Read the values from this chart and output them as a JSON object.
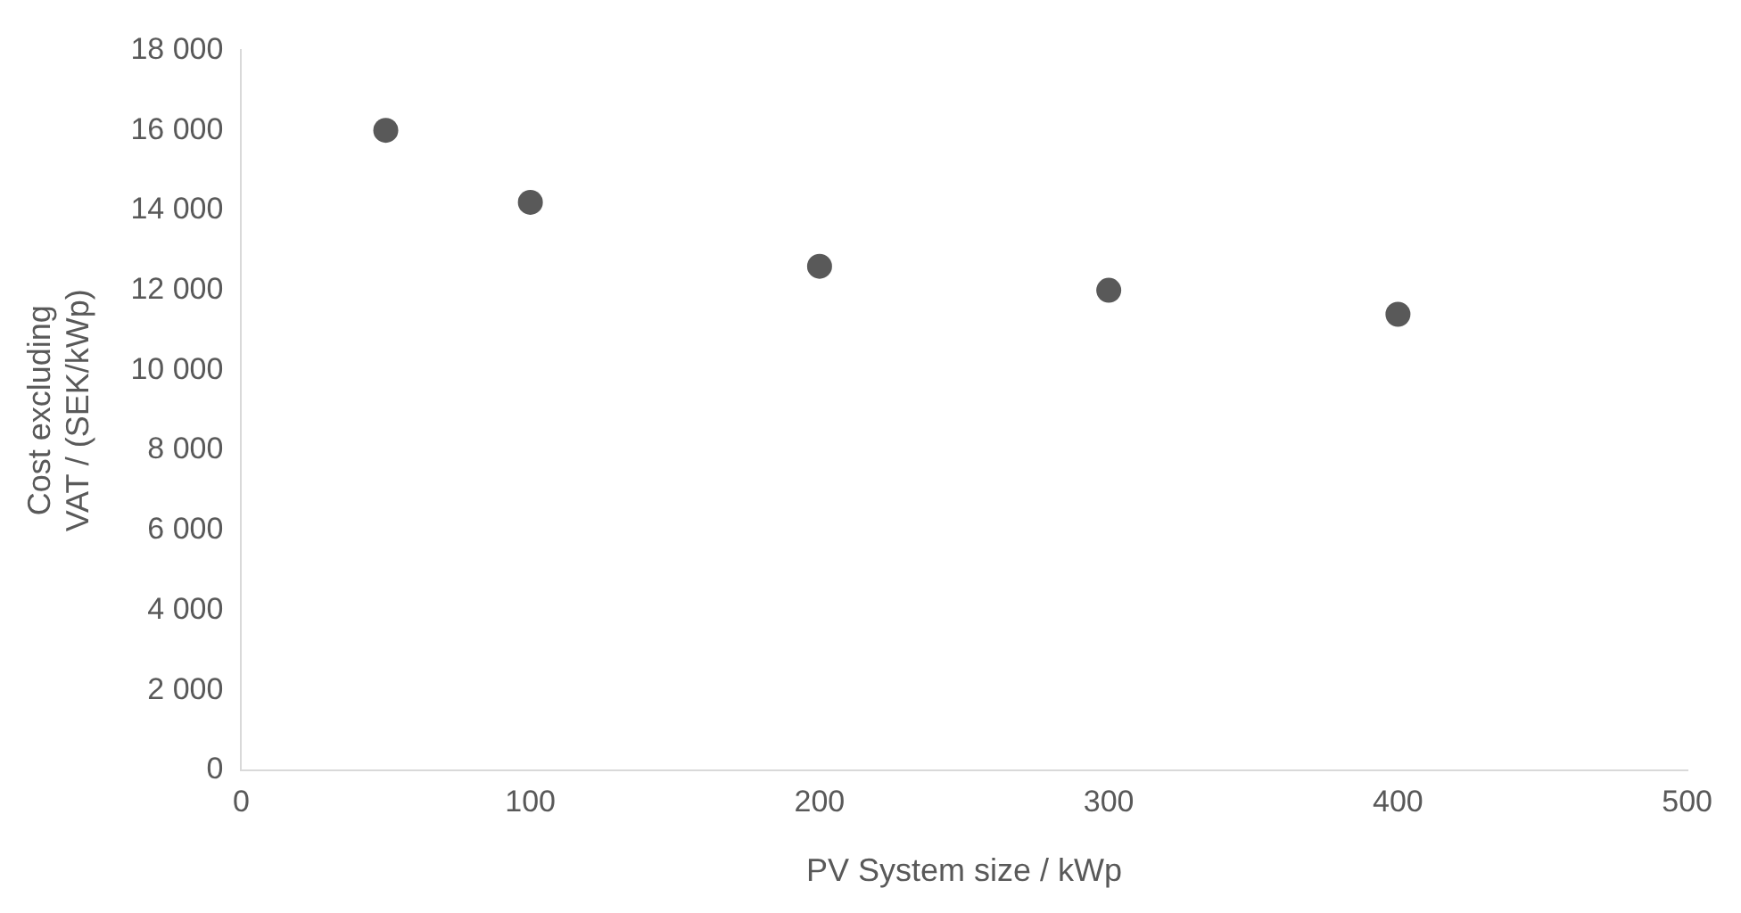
{
  "chart_data": {
    "type": "scatter",
    "xlabel": "PV System size / kWp",
    "ylabel": "Cost excluding VAT / (SEK/kWp)",
    "x": [
      50,
      100,
      200,
      300,
      400
    ],
    "series": [
      {
        "color": "#595959",
        "values": [
          16000,
          14200,
          12600,
          12000,
          11400
        ]
      }
    ],
    "xlim": [
      0,
      500
    ],
    "xticks": [
      0,
      100,
      200,
      300,
      400,
      500
    ],
    "ylim": [
      0,
      18000
    ],
    "yticks": [
      {
        "value": 0,
        "label": "0"
      },
      {
        "value": 2000,
        "label": "2 000"
      },
      {
        "value": 4000,
        "label": "4 000"
      },
      {
        "value": 6000,
        "label": "6 000"
      },
      {
        "value": 8000,
        "label": "8 000"
      },
      {
        "value": 10000,
        "label": "10 000"
      },
      {
        "value": 12000,
        "label": "12 000"
      },
      {
        "value": 14000,
        "label": "14 000"
      },
      {
        "value": 16000,
        "label": "16 000"
      },
      {
        "value": 18000,
        "label": "18 000"
      }
    ],
    "grid": false,
    "legend": false,
    "marker": "circle"
  }
}
